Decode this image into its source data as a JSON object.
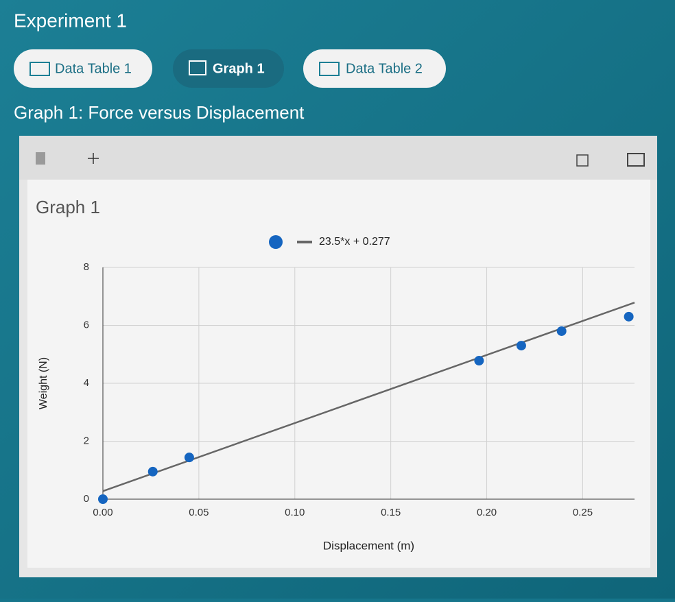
{
  "header": {
    "title": "Experiment 1"
  },
  "tabs": [
    "Data Table 1",
    "Graph 1",
    "Data Table 2"
  ],
  "section_title": "Graph 1: Force versus Displacement",
  "chart_data": {
    "type": "scatter",
    "title": "Graph 1",
    "x_label": "Displacement (m)",
    "y_label": "Weight (N)",
    "x": [
      0,
      0.026,
      0.045,
      0.196,
      0.218,
      0.239,
      0.274
    ],
    "series": [
      {
        "color": "#1565c0",
        "values": [
          0,
          0.95,
          1.44,
          4.78,
          5.3,
          5.8,
          6.3
        ]
      }
    ],
    "trendline": {
      "slope": 23.5,
      "intercept": 0.277,
      "label": "23.5*x + 0.277",
      "color": "#666666"
    },
    "xlim": [
      0,
      0.277
    ],
    "ylim": [
      0,
      8
    ],
    "xticks": [
      {
        "value": 0,
        "label": "0.00"
      },
      {
        "value": 0.05,
        "label": "0.05"
      },
      {
        "value": 0.1,
        "label": "0.10"
      },
      {
        "value": 0.15,
        "label": "0.15"
      },
      {
        "value": 0.2,
        "label": "0.20"
      },
      {
        "value": 0.25,
        "label": "0.25"
      }
    ],
    "yticks": [
      0,
      2,
      4,
      6,
      8
    ],
    "grid": true
  }
}
